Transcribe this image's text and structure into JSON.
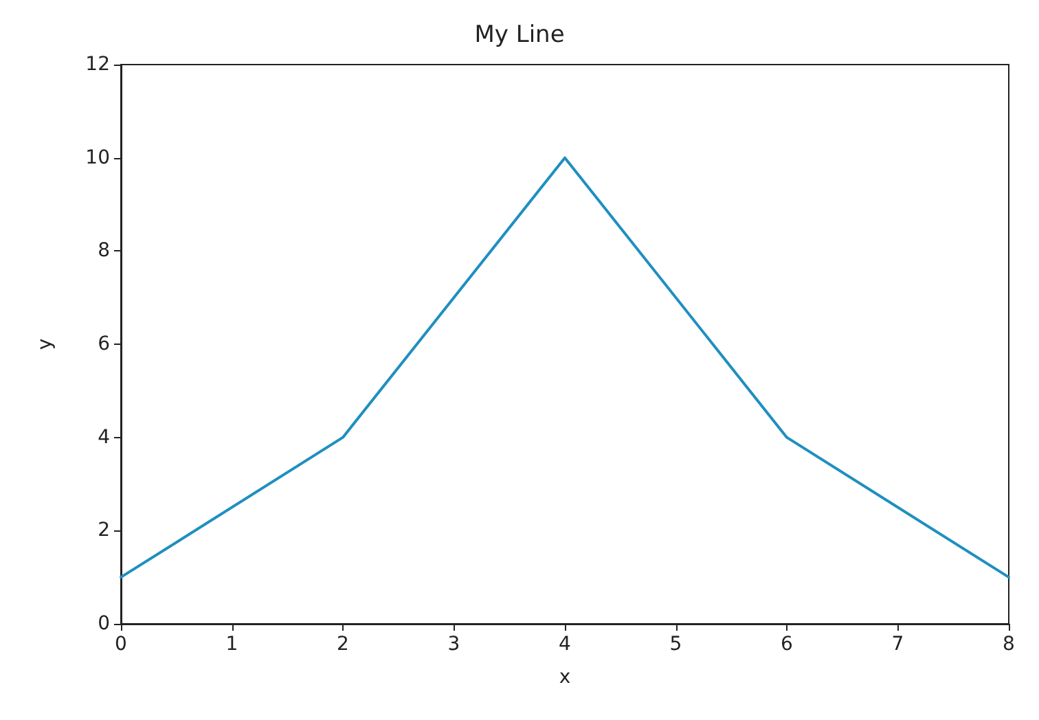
{
  "chart_data": {
    "type": "line",
    "title": "My Line",
    "xlabel": "x",
    "ylabel": "y",
    "x": [
      0,
      2,
      4,
      6,
      8
    ],
    "series": [
      {
        "color": "#1f8fc0",
        "values": [
          1,
          4,
          10,
          4,
          1
        ]
      }
    ],
    "xlim": [
      0,
      8
    ],
    "xticks": [
      0,
      1,
      2,
      3,
      4,
      5,
      6,
      7,
      8
    ],
    "ylim": [
      0,
      12
    ],
    "yticks": [
      0,
      2,
      4,
      6,
      8,
      10,
      12
    ],
    "grid": false,
    "marker": "none",
    "line_style": "solid"
  }
}
